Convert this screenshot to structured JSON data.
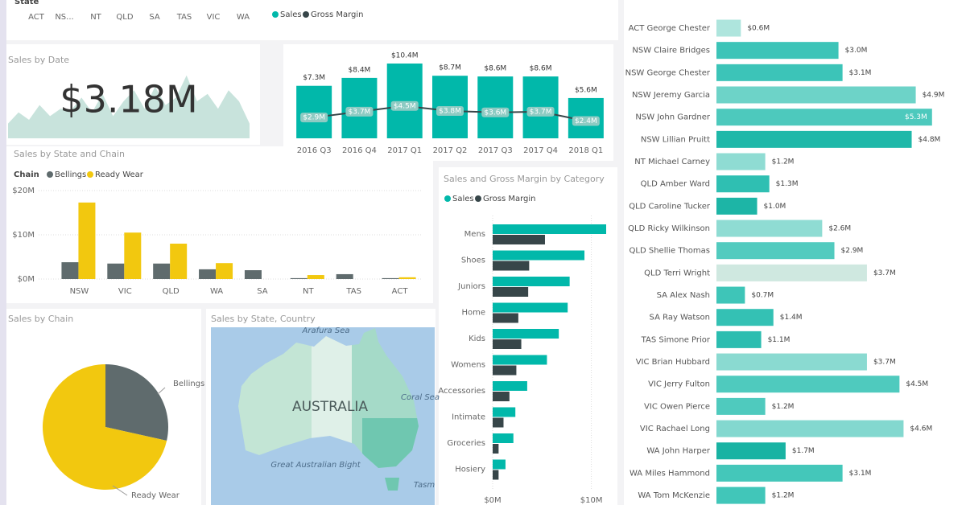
{
  "slicer": {
    "title": "State",
    "items": [
      "ACT",
      "NS...",
      "NT",
      "QLD",
      "SA",
      "TAS",
      "VIC",
      "WA"
    ]
  },
  "chart_data": [
    {
      "type": "kpi-area",
      "title": "Sales by Date",
      "kpi": "$3.18M",
      "color": "#c8e3dc",
      "values": [
        20,
        35,
        25,
        45,
        30,
        40,
        38,
        55,
        35,
        60,
        30,
        50,
        65,
        40,
        70,
        45,
        55,
        85,
        50,
        60,
        40,
        65,
        50,
        20
      ],
      "ylim": [
        0,
        100
      ]
    },
    {
      "type": "combo",
      "categories": [
        "2016 Q3",
        "2016 Q4",
        "2017 Q1",
        "2017 Q2",
        "2017 Q3",
        "2017 Q4",
        "2018 Q1"
      ],
      "ylim": [
        0,
        10.4
      ],
      "series": [
        {
          "name": "Sales",
          "color": "#01b8aa",
          "values": [
            7.3,
            8.4,
            10.4,
            8.7,
            8.6,
            8.6,
            5.6
          ],
          "value_labels": [
            "$7.3M",
            "$8.4M",
            "$10.4M",
            "$8.7M",
            "$8.6M",
            "$8.6M",
            "$5.6M"
          ]
        },
        {
          "name": "Gross Margin",
          "color": "#374649",
          "values": [
            2.9,
            3.7,
            4.5,
            3.8,
            3.6,
            3.7,
            2.4
          ],
          "value_labels": [
            "$2.9M",
            "$3.7M",
            "$4.5M",
            "$3.8M",
            "$3.6M",
            "$3.7M",
            "$2.4M"
          ]
        }
      ]
    },
    {
      "type": "bar",
      "title": "Sales by State and Chain",
      "legend_title": "Chain",
      "categories": [
        "NSW",
        "VIC",
        "QLD",
        "WA",
        "SA",
        "NT",
        "TAS",
        "ACT"
      ],
      "series": [
        {
          "name": "Bellings",
          "color": "#5f6b6d",
          "values": [
            3.8,
            3.5,
            3.5,
            2.2,
            2.0,
            0.2,
            1.1,
            0.2
          ]
        },
        {
          "name": "Ready Wear",
          "color": "#f2c80f",
          "values": [
            17.3,
            10.5,
            8.0,
            3.6,
            null,
            0.9,
            null,
            0.4
          ]
        }
      ],
      "ylim": [
        0,
        20
      ],
      "yticks": [
        {
          "value": 0,
          "label": "$0M"
        },
        {
          "value": 10,
          "label": "$10M"
        },
        {
          "value": 20,
          "label": "$20M"
        }
      ],
      "grid": true
    },
    {
      "type": "pie",
      "title": "Sales by Chain",
      "categories": [
        "Bellings",
        "Ready Wear"
      ],
      "values": [
        28.5,
        71.5
      ],
      "colors": [
        "#5f6b6d",
        "#f2c80f"
      ]
    },
    {
      "type": "map",
      "title": "Sales by State, Country",
      "labels": [
        "Arafura Sea",
        "AUSTRALIA",
        "Coral Sea",
        "Great Australian Bight",
        "Tasm"
      ]
    },
    {
      "type": "hbar",
      "title": "Sales and Gross Margin by Category",
      "categories": [
        "Mens",
        "Shoes",
        "Juniors",
        "Home",
        "Kids",
        "Womens",
        "Accessories",
        "Intimate",
        "Groceries",
        "Hosiery"
      ],
      "series": [
        {
          "name": "Sales",
          "color": "#01b8aa",
          "values": [
            11.5,
            9.3,
            7.8,
            7.6,
            6.7,
            5.5,
            3.5,
            2.3,
            2.1,
            1.3
          ]
        },
        {
          "name": "Gross Margin",
          "color": "#374649",
          "values": [
            5.3,
            3.7,
            3.6,
            2.6,
            2.9,
            2.4,
            1.7,
            1.1,
            0.6,
            0.6
          ]
        }
      ],
      "xlim": [
        0,
        11.5
      ],
      "xticks": [
        {
          "value": 0,
          "label": "$0M"
        },
        {
          "value": 10,
          "label": "$10M"
        }
      ],
      "grid": true
    },
    {
      "type": "hbar",
      "categories": [
        "ACT George Chester",
        "NSW Claire Bridges",
        "NSW George Chester",
        "NSW Jeremy Garcia",
        "NSW John Gardner",
        "NSW Lillian Pruitt",
        "NT Michael Carney",
        "QLD Amber Ward",
        "QLD Caroline Tucker",
        "QLD Ricky Wilkinson",
        "QLD Shellie Thomas",
        "QLD Terri Wright",
        "SA Alex Nash",
        "SA Ray Watson",
        "TAS Simone Prior",
        "VIC Brian Hubbard",
        "VIC Jerry Fulton",
        "VIC Owen Pierce",
        "VIC Rachael Long",
        "WA John Harper",
        "WA Miles Hammond",
        "WA Tom McKenzie"
      ],
      "values": [
        0.6,
        3.0,
        3.1,
        4.9,
        5.3,
        4.8,
        1.2,
        1.3,
        1.0,
        2.6,
        2.9,
        3.7,
        0.7,
        1.4,
        1.1,
        3.7,
        4.5,
        1.2,
        4.6,
        1.7,
        3.1,
        1.2
      ],
      "value_labels": [
        "$0.6M",
        "$3.0M",
        "$3.1M",
        "$4.9M",
        "$5.3M",
        "$4.8M",
        "$1.2M",
        "$1.3M",
        "$1.0M",
        "$2.6M",
        "$2.9M",
        "$3.7M",
        "$0.7M",
        "$1.4M",
        "$1.1M",
        "$3.7M",
        "$4.5M",
        "$1.2M",
        "$4.6M",
        "$1.7M",
        "$3.1M",
        "$1.2M"
      ],
      "colors": [
        "#aee5dd",
        "#3cc4b8",
        "#3cc4b8",
        "#6dd3c8",
        "#4dc9bd",
        "#1fb8a9",
        "#8fdcd3",
        "#2fbfb2",
        "#1db5a6",
        "#8fdcd3",
        "#52cbbf",
        "#cfe8e0",
        "#3ec5b8",
        "#34c1b4",
        "#2bbdb0",
        "#8adad1",
        "#4fcabe",
        "#4fcabe",
        "#83d8cf",
        "#19b3a3",
        "#44c7ba",
        "#41c6b9"
      ],
      "xlim": [
        0,
        5.7
      ]
    }
  ]
}
